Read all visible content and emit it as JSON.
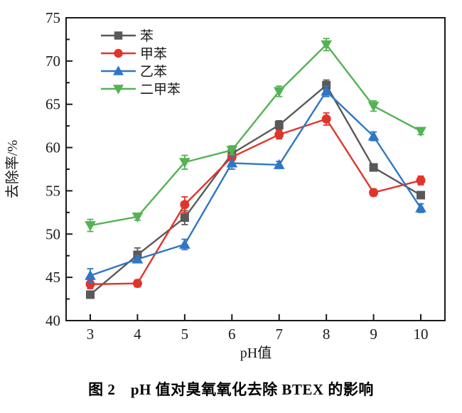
{
  "figure": {
    "caption": "图 2　pH 值对臭氧氧化去除 BTEX 的影响"
  },
  "chart_data": {
    "type": "line",
    "x": [
      3,
      4,
      5,
      6,
      7,
      8,
      9,
      10
    ],
    "xlabel": "pH值",
    "ylabel": "去除率/%",
    "xlim": [
      2.5,
      10.5
    ],
    "ylim": [
      40,
      75
    ],
    "ytick_step": 5,
    "ytick_minor_step": 2.5,
    "grid": false,
    "legend_position": "top-left-inside",
    "frame": "closed-box",
    "axis_color": "#1a1a1a",
    "series": [
      {
        "name": "苯",
        "marker": "square",
        "color": "#595959",
        "values": [
          43.0,
          47.6,
          51.9,
          59.3,
          62.6,
          67.2,
          57.7,
          54.5
        ],
        "errors": [
          0.4,
          0.8,
          0.8,
          0.4,
          0.5,
          0.6,
          0.4,
          0.4
        ]
      },
      {
        "name": "甲苯",
        "marker": "circle",
        "color": "#e0352b",
        "values": [
          44.2,
          44.3,
          53.4,
          58.9,
          61.5,
          63.3,
          54.8,
          56.2
        ],
        "errors": [
          0.5,
          0.4,
          0.9,
          0.4,
          0.5,
          0.7,
          0.4,
          0.5
        ]
      },
      {
        "name": "乙苯",
        "marker": "triangle-up",
        "color": "#2f76c4",
        "values": [
          45.2,
          47.1,
          48.8,
          58.2,
          58.0,
          66.5,
          61.3,
          53.0
        ],
        "errors": [
          0.8,
          0.4,
          0.6,
          0.7,
          0.4,
          0.6,
          0.5,
          0.5
        ]
      },
      {
        "name": "二甲苯",
        "marker": "triangle-down",
        "color": "#54b254",
        "values": [
          51.0,
          52.0,
          58.3,
          59.7,
          66.5,
          71.9,
          64.8,
          61.9
        ],
        "errors": [
          0.7,
          0.4,
          0.8,
          0.5,
          0.6,
          0.7,
          0.6,
          0.4
        ]
      }
    ]
  }
}
